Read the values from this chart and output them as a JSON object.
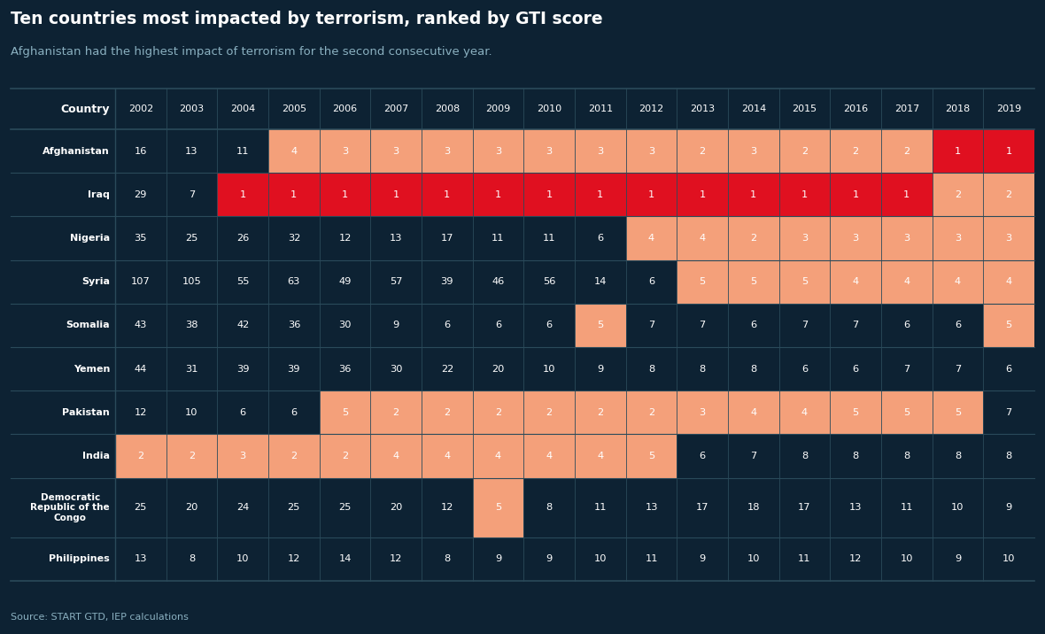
{
  "title": "Ten countries most impacted by terrorism, ranked by GTI score",
  "subtitle": "Afghanistan had the highest impact of terrorism for the second consecutive year.",
  "source": "Source: START GTD, IEP calculations",
  "bg_color": "#0d2233",
  "header_row": [
    "Country",
    "2002",
    "2003",
    "2004",
    "2005",
    "2006",
    "2007",
    "2008",
    "2009",
    "2010",
    "2011",
    "2012",
    "2013",
    "2014",
    "2015",
    "2016",
    "2017",
    "2018",
    "2019"
  ],
  "countries": [
    "Afghanistan",
    "Iraq",
    "Nigeria",
    "Syria",
    "Somalia",
    "Yemen",
    "Pakistan",
    "India",
    "Democratic\nRepublic of the\nCongo",
    "Philippines"
  ],
  "data": [
    [
      16,
      13,
      11,
      4,
      3,
      3,
      3,
      3,
      3,
      3,
      3,
      2,
      3,
      2,
      2,
      2,
      1,
      1
    ],
    [
      29,
      7,
      1,
      1,
      1,
      1,
      1,
      1,
      1,
      1,
      1,
      1,
      1,
      1,
      1,
      1,
      2,
      2
    ],
    [
      35,
      25,
      26,
      32,
      12,
      13,
      17,
      11,
      11,
      6,
      4,
      4,
      2,
      3,
      3,
      3,
      3,
      3
    ],
    [
      107,
      105,
      55,
      63,
      49,
      57,
      39,
      46,
      56,
      14,
      6,
      5,
      5,
      5,
      4,
      4,
      4,
      4
    ],
    [
      43,
      38,
      42,
      36,
      30,
      9,
      6,
      6,
      6,
      5,
      7,
      7,
      6,
      7,
      7,
      6,
      6,
      5
    ],
    [
      44,
      31,
      39,
      39,
      36,
      30,
      22,
      20,
      10,
      9,
      8,
      8,
      8,
      6,
      6,
      7,
      7,
      6
    ],
    [
      12,
      10,
      6,
      6,
      5,
      2,
      2,
      2,
      2,
      2,
      2,
      3,
      4,
      4,
      5,
      5,
      5,
      7
    ],
    [
      2,
      2,
      3,
      2,
      2,
      4,
      4,
      4,
      4,
      4,
      5,
      6,
      7,
      8,
      8,
      8,
      8,
      8
    ],
    [
      25,
      20,
      24,
      25,
      25,
      20,
      12,
      5,
      8,
      11,
      13,
      17,
      18,
      17,
      13,
      11,
      10,
      9
    ],
    [
      13,
      8,
      10,
      12,
      14,
      12,
      8,
      9,
      9,
      10,
      11,
      9,
      10,
      11,
      12,
      10,
      9,
      10
    ]
  ],
  "cell_colors": [
    [
      "dark",
      "dark",
      "dark",
      "salmon",
      "salmon",
      "salmon",
      "salmon",
      "salmon",
      "salmon",
      "salmon",
      "salmon",
      "salmon",
      "salmon",
      "salmon",
      "salmon",
      "salmon",
      "red",
      "red"
    ],
    [
      "dark",
      "dark",
      "red",
      "red",
      "red",
      "red",
      "red",
      "red",
      "red",
      "red",
      "red",
      "red",
      "red",
      "red",
      "red",
      "red",
      "salmon",
      "salmon"
    ],
    [
      "dark",
      "dark",
      "dark",
      "dark",
      "dark",
      "dark",
      "dark",
      "dark",
      "dark",
      "dark",
      "salmon",
      "salmon",
      "salmon",
      "salmon",
      "salmon",
      "salmon",
      "salmon",
      "salmon"
    ],
    [
      "dark",
      "dark",
      "dark",
      "dark",
      "dark",
      "dark",
      "dark",
      "dark",
      "dark",
      "dark",
      "dark",
      "salmon",
      "salmon",
      "salmon",
      "salmon",
      "salmon",
      "salmon",
      "salmon"
    ],
    [
      "dark",
      "dark",
      "dark",
      "dark",
      "dark",
      "dark",
      "dark",
      "dark",
      "dark",
      "salmon",
      "dark",
      "dark",
      "dark",
      "dark",
      "dark",
      "dark",
      "dark",
      "salmon"
    ],
    [
      "dark",
      "dark",
      "dark",
      "dark",
      "dark",
      "dark",
      "dark",
      "dark",
      "dark",
      "dark",
      "dark",
      "dark",
      "dark",
      "dark",
      "dark",
      "dark",
      "dark",
      "dark"
    ],
    [
      "dark",
      "dark",
      "dark",
      "dark",
      "salmon",
      "salmon",
      "salmon",
      "salmon",
      "salmon",
      "salmon",
      "salmon",
      "salmon",
      "salmon",
      "salmon",
      "salmon",
      "salmon",
      "salmon",
      "dark"
    ],
    [
      "salmon",
      "salmon",
      "salmon",
      "salmon",
      "salmon",
      "salmon",
      "salmon",
      "salmon",
      "salmon",
      "salmon",
      "salmon",
      "dark",
      "dark",
      "dark",
      "dark",
      "dark",
      "dark",
      "dark"
    ],
    [
      "dark",
      "dark",
      "dark",
      "dark",
      "dark",
      "dark",
      "dark",
      "salmon",
      "dark",
      "dark",
      "dark",
      "dark",
      "dark",
      "dark",
      "dark",
      "dark",
      "dark",
      "dark"
    ],
    [
      "dark",
      "dark",
      "dark",
      "dark",
      "dark",
      "dark",
      "dark",
      "dark",
      "dark",
      "dark",
      "dark",
      "dark",
      "dark",
      "dark",
      "dark",
      "dark",
      "dark",
      "dark"
    ]
  ],
  "color_dark": "#0d2233",
  "color_salmon": "#f4a07a",
  "color_red": "#e01020",
  "grid_color": "#2a4a5a",
  "text_light": "#ffffff",
  "text_dim": "#8ab0c0"
}
